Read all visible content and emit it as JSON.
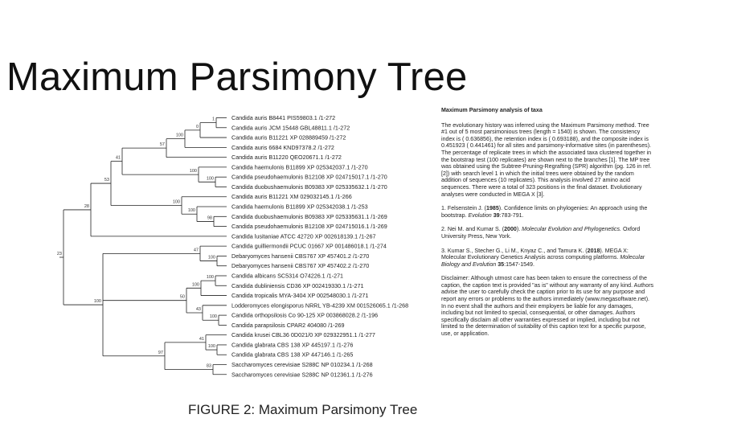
{
  "slide_title": "Maximum Parsimony Tree",
  "figure_caption": "FIGURE 2: Maximum Parsimony Tree",
  "tree": {
    "taxa": [
      "Candida auris B8441 PIS59803.1 /1-272",
      "Candida auris JCM 15448 GBL48811.1 /1-272",
      "Candida auris B11221 XP 028889459 /1-272",
      "Candida auris 6684 KND97378.2 /1-272",
      "Candida auris B11220 QEO20671.1 /1-272",
      "Candida haemulonis B11899 XP 025342037.1 /1-270",
      "Candida pseudohaemulonis B12108 XP 024715017.1 /1-270",
      "Candida duobushaemulonis B09383 XP 025335632.1 /1-270",
      "Candida auris B11221 XM 029032145.1 /1-266",
      "Candida haemulonis B11899 XP 025342038.1 /1-253",
      "Candida duobushaemulonis B09383 XP 025335631.1 /1-269",
      "Candida pseudohaemulonis B12108 XP 024715016.1 /1-269",
      "Candida lusitaniae ATCC 42720 XP 002618139.1 /1-267",
      "Candida guilliermondii PCUC 01667 XP 001486018.1 /1-274",
      "Debaryomyces hansenii CBS767 XP 457401.2 /1-270",
      "Debaryomyces hansenii CBS767 XP 457402.2 /1-270",
      "Candida albicans SC5314 O74226.1 /1-271",
      "Candida dubliniensis CD36 XP 002419330.1 /1-271",
      "Candida tropicalis MYA-3404 XP 002548030.1 /1-271",
      "Lodderomyces elongisporus NRRL YB-4239 XM 001526065.1 /1-268",
      "Candida orthopsilosis Co 90-125 XP 003868028.2 /1-196",
      "Candida parapsilosis CPAR2 404080 /1-269",
      "Candida krusei CBL36 0D021/0 XP 029322951.1 /1-277",
      "Candida glabrata CBS 138 XP 445197.1 /1-276",
      "Candida glabrata CBS 138 XP 447146.1 /1-265",
      "Saccharomyces cerevisiae S288C NP 010234.1 /1-268",
      "Saccharomyces cerevisiae S288C NP 012361.1 /1-276"
    ],
    "bootstrap": [
      {
        "node": "n_0_1",
        "value": "1"
      },
      {
        "node": "n_0_2",
        "value": "0"
      },
      {
        "node": "n_0_3",
        "value": "100"
      },
      {
        "node": "n_0_4",
        "value": "57"
      },
      {
        "node": "n_5_7",
        "value": "100"
      },
      {
        "node": "n_6_7",
        "value": "100"
      },
      {
        "node": "n_0_7",
        "value": "41"
      },
      {
        "node": "n_8_11",
        "value": "100"
      },
      {
        "node": "n_10_11",
        "value": "98"
      },
      {
        "node": "n_9_11",
        "value": "100"
      },
      {
        "node": "n_0_11",
        "value": "53"
      },
      {
        "node": "n_0_12",
        "value": "28"
      },
      {
        "node": "n_14_15",
        "value": "100"
      },
      {
        "node": "n_13_15",
        "value": "47"
      },
      {
        "node": "n_16_17",
        "value": "100"
      },
      {
        "node": "n_16_18",
        "value": "100"
      },
      {
        "node": "n_20_21",
        "value": "100"
      },
      {
        "node": "n_19_21",
        "value": "43"
      },
      {
        "node": "n_16_21",
        "value": "50"
      },
      {
        "node": "n_23_24",
        "value": "100"
      },
      {
        "node": "n_22_24",
        "value": "41"
      },
      {
        "node": "n_25_26",
        "value": "83"
      },
      {
        "node": "n_22_26",
        "value": "97"
      },
      {
        "node": "n_13_26",
        "value": "100"
      },
      {
        "node": "root",
        "value": "23"
      }
    ]
  },
  "caption": {
    "title": "Maximum Parsimony analysis of taxa",
    "body": "The evolutionary history was inferred using the Maximum Parsimony method. Tree #1 out of 5 most parsimonious trees (length = 1540) is shown. The consistency index is ( 0.636856), the retention index is ( 0.693188), and the composite index is 0.451923 ( 0.441461) for all sites and parsimony-informative sites (in parentheses). The percentage of replicate trees in which the associated taxa clustered together in the bootstrap test (100 replicates) are shown next to the branches [1]. The MP tree was obtained using the Subtree-Pruning-Regrafting (SPR) algorithm (pg. 126 in ref. [2]) with search level 1 in which the initial trees were obtained by the random addition of sequences (10 replicates). This analysis involved 27 amino acid sequences. There were a total of 323 positions in the final dataset. Evolutionary analyses were conducted in MEGA X [3].",
    "ref1_prefix": "1. Felsenstein J. (",
    "ref1_year": "1985",
    "ref1_mid": "). Confidence limits on phylogenies: An approach using the bootstrap. ",
    "ref1_journal": "Evolution",
    "ref1_vol": " 39",
    "ref1_end": ":783-791.",
    "ref2_prefix": "2. Nei M. and Kumar S. (",
    "ref2_year": "2000",
    "ref2_mid": "). ",
    "ref2_journal": "Molecular Evolution and Phylogenetics.",
    "ref2_end": " Oxford University Press, New York.",
    "ref3_prefix": "3. Kumar S., Stecher G., Li M., Knyaz C., and Tamura K. (",
    "ref3_year": "2018",
    "ref3_mid": "). MEGA X: Molecular Evolutionary Genetics Analysis across computing platforms. ",
    "ref3_journal": "Molecular Biology and Evolution",
    "ref3_vol": " 35",
    "ref3_end": ":1547-1549.",
    "disclaimer": "Disclaimer: Although utmost care has been taken to ensure the correctness of the caption, the caption text is provided \"as is\" without any warranty of any kind. Authors advise the user to carefully check the caption prior to its use for any purpose and report any errors or problems to the authors immediately (www.megasoftware.net). In no event shall the authors and their employers be liable for any damages, including but not limited to special, consequential, or other damages. Authors specifically disclaim all other warranties expressed or implied, including but not limited to the determination of suitability of this caption text for a specific purpose, use, or application."
  }
}
